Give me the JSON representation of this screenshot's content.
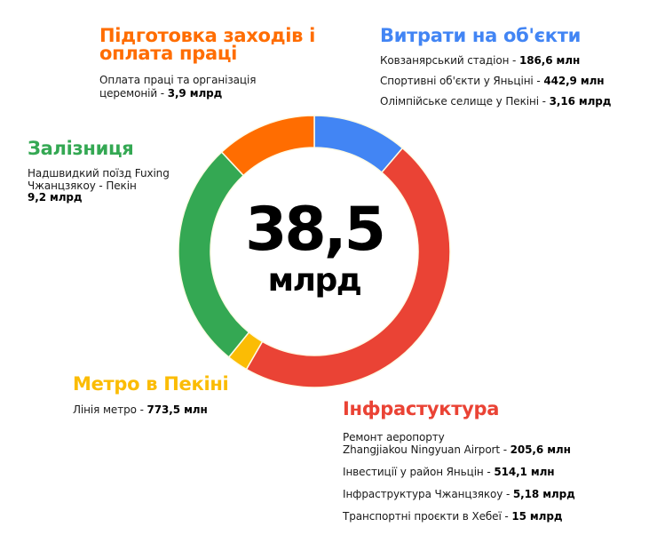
{
  "center": {
    "total": "38,5",
    "unit": "млрд"
  },
  "sections": {
    "prep": {
      "heading_line1": "Підготовка заходів і",
      "heading_line2": "оплата праці",
      "color": "#ff6d01",
      "items": [
        {
          "label_line1": "Оплата праці та організація",
          "label_line2": "церемоній",
          "sep": " - ",
          "value": "3,9 млрд"
        }
      ]
    },
    "objects": {
      "heading": "Витрати на об'єкти",
      "color": "#4285f4",
      "items": [
        {
          "label": "Ковзанярський стадіон",
          "sep": " - ",
          "value": "186,6 млн"
        },
        {
          "label": "Спортивні об'єкти у Яньціні",
          "sep": " - ",
          "value": "442,9 млн"
        },
        {
          "label": "Олімпійське селище у Пекіні",
          "sep": " - ",
          "value": "3,16 млрд"
        }
      ]
    },
    "rail": {
      "heading": "Залізниця",
      "color": "#34a853",
      "items": [
        {
          "label_line1": "Надшвидкий поїзд Fuxing",
          "label_line2": "Чжанцзякоу - Пекін",
          "value": "9,2 млрд"
        }
      ]
    },
    "metro": {
      "heading": "Метро в Пекіні",
      "color": "#fbbc04",
      "items": [
        {
          "label": "Лінія метро",
          "sep": " - ",
          "value": "773,5 млн"
        }
      ]
    },
    "infra": {
      "heading": "Інфрастуктура",
      "color": "#ea4335",
      "items": [
        {
          "label_line1": "Ремонт аеропорту",
          "label_line2": "Zhangjiakou Ningyuan Airport",
          "sep": " - ",
          "value": "205,6 млн"
        },
        {
          "label": "Інвестиції у район Яньцін",
          "sep": " - ",
          "value": "514,1 млн"
        },
        {
          "label": "Інфраструктура Чжанцзякоу",
          "sep": " - ",
          "value": "5,18 млрд"
        },
        {
          "label": "Транспортні проєкти в Хебеї",
          "sep": " - ",
          "value": "15 млрд"
        }
      ]
    }
  },
  "chart_data": {
    "type": "pie",
    "variant": "donut",
    "title": "",
    "center_label": "38,5 млрд",
    "total": 38.5,
    "unit": "млрд",
    "categories": [
      "Витрати на об'єкти",
      "Інфрастуктура",
      "Метро в Пекіні",
      "Залізниця",
      "Підготовка заходів і оплата праці"
    ],
    "values": [
      3.7895,
      20.8997,
      0.7735,
      9.2,
      3.9
    ],
    "colors": [
      "#4285f4",
      "#ea4335",
      "#fbbc04",
      "#34a853",
      "#ff6d01"
    ],
    "segment_angles_deg": [
      {
        "name": "Витрати на об'єкти",
        "start": 0,
        "end": 40.5
      },
      {
        "name": "Інфрастуктура",
        "start": 40.5,
        "end": 210
      },
      {
        "name": "Метро в Пекіні",
        "start": 210,
        "end": 219
      },
      {
        "name": "Залізниця",
        "start": 219,
        "end": 317
      },
      {
        "name": "Підготовка заходів і оплата праці",
        "start": 317,
        "end": 360
      }
    ],
    "breakdown": {
      "Витрати на об'єкти": [
        {
          "label": "Ковзанярський стадіон",
          "value": 0.1866
        },
        {
          "label": "Спортивні об'єкти у Яньціні",
          "value": 0.4429
        },
        {
          "label": "Олімпійське селище у Пекіні",
          "value": 3.16
        }
      ],
      "Інфрастуктура": [
        {
          "label": "Ремонт аеропорту Zhangjiakou Ningyuan Airport",
          "value": 0.2056
        },
        {
          "label": "Інвестиції у район Яньцін",
          "value": 0.5141
        },
        {
          "label": "Інфраструктура Чжанцзякоу",
          "value": 5.18
        },
        {
          "label": "Транспортні проєкти в Хебеї",
          "value": 15
        }
      ],
      "Метро в Пекіні": [
        {
          "label": "Лінія метро",
          "value": 0.7735
        }
      ],
      "Залізниця": [
        {
          "label": "Надшвидкий поїзд Fuxing Чжанцзякоу - Пекін",
          "value": 9.2
        }
      ],
      "Підготовка заходів і оплата праці": [
        {
          "label": "Оплата праці та організація церемоній",
          "value": 3.9
        }
      ]
    },
    "legend_position": "around"
  }
}
